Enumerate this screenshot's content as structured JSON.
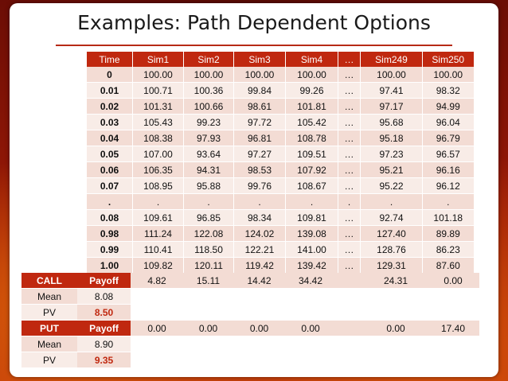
{
  "slide": {
    "title": "Examples: Path Dependent Options"
  },
  "sim_table": {
    "headers": [
      "Time",
      "Sim1",
      "Sim2",
      "Sim3",
      "Sim4",
      "…",
      "Sim249",
      "Sim250"
    ],
    "rows": [
      [
        "0",
        "100.00",
        "100.00",
        "100.00",
        "100.00",
        "…",
        "100.00",
        "100.00"
      ],
      [
        "0.01",
        "100.71",
        "100.36",
        "99.84",
        "99.26",
        "…",
        "97.41",
        "98.32"
      ],
      [
        "0.02",
        "101.31",
        "100.66",
        "98.61",
        "101.81",
        "…",
        "97.17",
        "94.99"
      ],
      [
        "0.03",
        "105.43",
        "99.23",
        "97.72",
        "105.42",
        "…",
        "95.68",
        "96.04"
      ],
      [
        "0.04",
        "108.38",
        "97.93",
        "96.81",
        "108.78",
        "…",
        "95.18",
        "96.79"
      ],
      [
        "0.05",
        "107.00",
        "93.64",
        "97.27",
        "109.51",
        "…",
        "97.23",
        "96.57"
      ],
      [
        "0.06",
        "106.35",
        "94.31",
        "98.53",
        "107.92",
        "…",
        "95.21",
        "96.16"
      ],
      [
        "0.07",
        "108.95",
        "95.88",
        "99.76",
        "108.67",
        "…",
        "95.22",
        "96.12"
      ],
      [
        ".",
        ".",
        ".",
        ".",
        ".",
        ".",
        ".",
        "."
      ],
      [
        "0.08",
        "109.61",
        "96.85",
        "98.34",
        "109.81",
        "…",
        "92.74",
        "101.18"
      ],
      [
        "0.98",
        "111.24",
        "122.08",
        "124.02",
        "139.08",
        "…",
        "127.40",
        "89.89"
      ],
      [
        "0.99",
        "110.41",
        "118.50",
        "122.21",
        "141.00",
        "…",
        "128.76",
        "86.23"
      ],
      [
        "1.00",
        "109.82",
        "120.11",
        "119.42",
        "139.42",
        "…",
        "129.31",
        "87.60"
      ]
    ]
  },
  "options": {
    "call": {
      "label": "CALL",
      "payoff_label": "Payoff",
      "payoffs": [
        "4.82",
        "15.11",
        "14.42",
        "34.42",
        "",
        "24.31",
        "0.00"
      ],
      "mean_label": "Mean",
      "mean": "8.08",
      "pv_label": "PV",
      "pv": "8.50"
    },
    "put": {
      "label": "PUT",
      "payoff_label": "Payoff",
      "payoffs": [
        "0.00",
        "0.00",
        "0.00",
        "0.00",
        "",
        "0.00",
        "17.40"
      ],
      "mean_label": "Mean",
      "mean": "8.90",
      "pv_label": "PV",
      "pv": "9.35"
    }
  },
  "colors": {
    "header_red": "#c0280f",
    "row_light": "#f8ece7",
    "row_dark": "#f3dcd4",
    "background": "#8a1406"
  }
}
